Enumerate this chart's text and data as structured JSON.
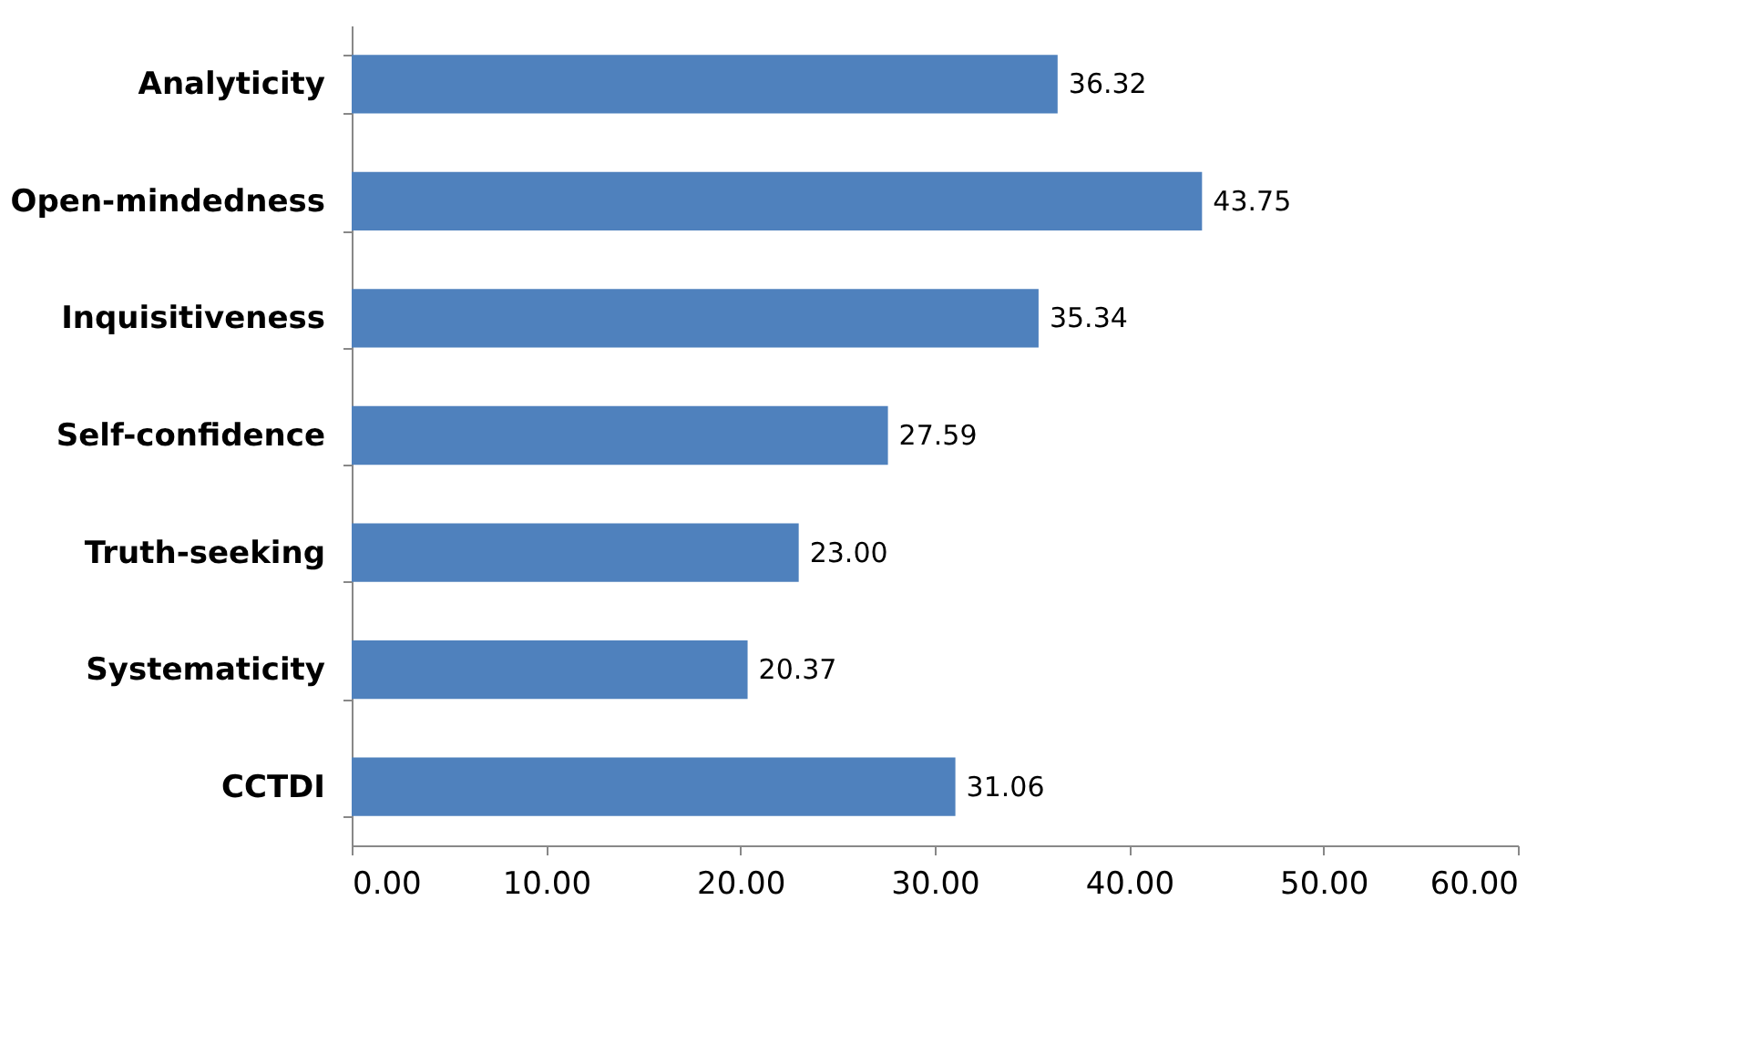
{
  "chart_data": {
    "type": "bar",
    "orientation": "horizontal",
    "categories": [
      "Analyticity",
      "Open-mindedness",
      "Inquisitiveness",
      "Self-confidence",
      "Truth-seeking",
      "Systematicity",
      "CCTDI"
    ],
    "values": [
      36.32,
      43.75,
      35.34,
      27.59,
      23.0,
      20.37,
      31.06
    ],
    "value_labels": [
      "36.32",
      "43.75",
      "35.34",
      "27.59",
      "23.00",
      "20.37",
      "31.06"
    ],
    "color": "#4f81bd",
    "xlim": [
      0,
      60
    ],
    "xticks": [
      {
        "value": 0,
        "label": "0.00"
      },
      {
        "value": 10,
        "label": "10.00"
      },
      {
        "value": 20,
        "label": "20.00"
      },
      {
        "value": 30,
        "label": "30.00"
      },
      {
        "value": 40,
        "label": "40.00"
      },
      {
        "value": 50,
        "label": "50.00"
      },
      {
        "value": 60,
        "label": "60.00"
      }
    ],
    "grid": false
  }
}
